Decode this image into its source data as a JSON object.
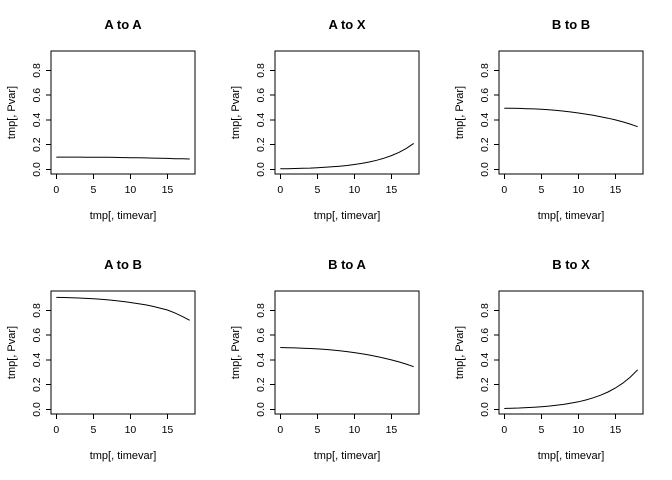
{
  "figure": {
    "background": "#ffffff",
    "line_color": "#000000",
    "title_color": "#000000"
  },
  "axes": {
    "xticks": [
      {
        "v": 0,
        "label": "0"
      },
      {
        "v": 5,
        "label": "5"
      },
      {
        "v": 10,
        "label": "10"
      },
      {
        "v": 15,
        "label": "15"
      }
    ],
    "yticks": [
      {
        "v": 0.0,
        "label": "0.0"
      },
      {
        "v": 0.2,
        "label": "0.2"
      },
      {
        "v": 0.4,
        "label": "0.4"
      },
      {
        "v": 0.6,
        "label": "0.6"
      },
      {
        "v": 0.8,
        "label": "0.8"
      }
    ]
  },
  "chart_data": [
    {
      "type": "line",
      "title": "A to A",
      "xlabel": "tmp[, timevar]",
      "ylabel": "tmp[, Pvar]",
      "xlim": [
        0,
        18
      ],
      "ylim": [
        0,
        0.92
      ],
      "grid": false,
      "legend": "none",
      "x": [
        0,
        1,
        2,
        3,
        4,
        5,
        6,
        7,
        8,
        9,
        10,
        11,
        12,
        13,
        14,
        15,
        16,
        17,
        18
      ],
      "y": [
        0.1,
        0.1,
        0.1,
        0.1,
        0.099,
        0.099,
        0.098,
        0.098,
        0.097,
        0.096,
        0.095,
        0.094,
        0.093,
        0.092,
        0.09,
        0.089,
        0.087,
        0.086,
        0.084
      ]
    },
    {
      "type": "line",
      "title": "A to X",
      "xlabel": "tmp[, timevar]",
      "ylabel": "tmp[, Pvar]",
      "xlim": [
        0,
        18
      ],
      "ylim": [
        0,
        0.92
      ],
      "grid": false,
      "legend": "none",
      "x": [
        0,
        1,
        2,
        3,
        4,
        5,
        6,
        7,
        8,
        9,
        10,
        11,
        12,
        13,
        14,
        15,
        16,
        17,
        18
      ],
      "y": [
        0.005,
        0.006,
        0.008,
        0.009,
        0.011,
        0.014,
        0.017,
        0.021,
        0.026,
        0.032,
        0.04,
        0.049,
        0.06,
        0.074,
        0.091,
        0.112,
        0.138,
        0.17,
        0.21
      ]
    },
    {
      "type": "line",
      "title": "B to B",
      "xlabel": "tmp[, timevar]",
      "ylabel": "tmp[, Pvar]",
      "xlim": [
        0,
        18
      ],
      "ylim": [
        0,
        0.92
      ],
      "grid": false,
      "legend": "none",
      "x": [
        0,
        1,
        2,
        3,
        4,
        5,
        6,
        7,
        8,
        9,
        10,
        11,
        12,
        13,
        14,
        15,
        16,
        17,
        18
      ],
      "y": [
        0.495,
        0.494,
        0.493,
        0.491,
        0.489,
        0.486,
        0.482,
        0.477,
        0.471,
        0.464,
        0.456,
        0.447,
        0.437,
        0.426,
        0.414,
        0.4,
        0.384,
        0.366,
        0.345
      ]
    },
    {
      "type": "line",
      "title": "A to B",
      "xlabel": "tmp[, timevar]",
      "ylabel": "tmp[, Pvar]",
      "xlim": [
        0,
        18
      ],
      "ylim": [
        0,
        0.92
      ],
      "grid": false,
      "legend": "none",
      "x": [
        0,
        1,
        2,
        3,
        4,
        5,
        6,
        7,
        8,
        9,
        10,
        11,
        12,
        13,
        14,
        15,
        16,
        17,
        18
      ],
      "y": [
        0.905,
        0.904,
        0.902,
        0.9,
        0.897,
        0.894,
        0.89,
        0.885,
        0.879,
        0.872,
        0.864,
        0.855,
        0.845,
        0.833,
        0.819,
        0.803,
        0.78,
        0.752,
        0.72
      ]
    },
    {
      "type": "line",
      "title": "B to A",
      "xlabel": "tmp[, timevar]",
      "ylabel": "tmp[, Pvar]",
      "xlim": [
        0,
        18
      ],
      "ylim": [
        0,
        0.92
      ],
      "grid": false,
      "legend": "none",
      "x": [
        0,
        1,
        2,
        3,
        4,
        5,
        6,
        7,
        8,
        9,
        10,
        11,
        12,
        13,
        14,
        15,
        16,
        17,
        18
      ],
      "y": [
        0.5,
        0.499,
        0.497,
        0.495,
        0.492,
        0.489,
        0.485,
        0.48,
        0.474,
        0.467,
        0.459,
        0.45,
        0.44,
        0.428,
        0.415,
        0.4,
        0.384,
        0.366,
        0.345
      ]
    },
    {
      "type": "line",
      "title": "B to X",
      "xlabel": "tmp[, timevar]",
      "ylabel": "tmp[, Pvar]",
      "xlim": [
        0,
        18
      ],
      "ylim": [
        0,
        0.92
      ],
      "grid": false,
      "legend": "none",
      "x": [
        0,
        1,
        2,
        3,
        4,
        5,
        6,
        7,
        8,
        9,
        10,
        11,
        12,
        13,
        14,
        15,
        16,
        17,
        18
      ],
      "y": [
        0.008,
        0.01,
        0.012,
        0.015,
        0.018,
        0.022,
        0.027,
        0.034,
        0.041,
        0.051,
        0.062,
        0.076,
        0.094,
        0.115,
        0.141,
        0.173,
        0.213,
        0.261,
        0.32
      ]
    }
  ]
}
